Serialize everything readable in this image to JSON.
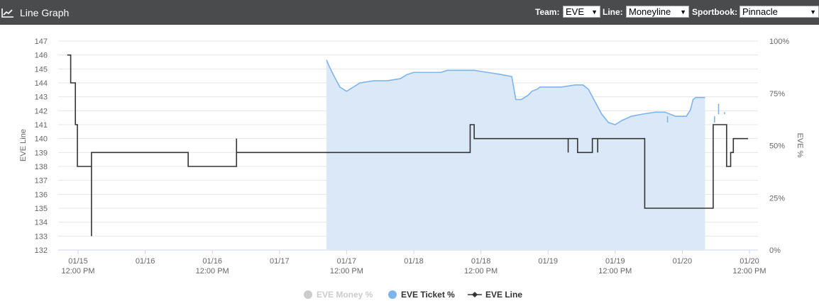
{
  "header": {
    "title": "Line Graph",
    "icon": "line-chart-icon",
    "team_label": "Team:",
    "team_value": "EVE",
    "line_label": "Line:",
    "line_value": "Moneyline",
    "sportbook_label": "Sportbook:",
    "sportbook_value": "Pinnacle"
  },
  "chart_data": {
    "type": "line",
    "ylabel": "EVE Line",
    "y2label": "EVE %",
    "ylim": [
      132,
      147
    ],
    "y_ticks": [
      132,
      133,
      134,
      135,
      136,
      137,
      138,
      139,
      140,
      141,
      142,
      143,
      144,
      145,
      146,
      147
    ],
    "y2lim": [
      0,
      100
    ],
    "y2_ticks": [
      "0%",
      "25%",
      "50%",
      "75%",
      "100%"
    ],
    "x_ticks": [
      {
        "t": 0,
        "date": "01/15",
        "time": "12:00 PM"
      },
      {
        "t": 0.5,
        "date": "01/16",
        "time": ""
      },
      {
        "t": 1,
        "date": "01/16",
        "time": "12:00 PM"
      },
      {
        "t": 1.5,
        "date": "01/17",
        "time": ""
      },
      {
        "t": 2,
        "date": "01/17",
        "time": "12:00 PM"
      },
      {
        "t": 2.5,
        "date": "01/18",
        "time": ""
      },
      {
        "t": 3,
        "date": "01/18",
        "time": "12:00 PM"
      },
      {
        "t": 3.5,
        "date": "01/19",
        "time": ""
      },
      {
        "t": 4,
        "date": "01/19",
        "time": "12:00 PM"
      },
      {
        "t": 4.5,
        "date": "01/20",
        "time": ""
      },
      {
        "t": 5,
        "date": "01/20",
        "time": "12:00 PM"
      }
    ],
    "grid": true,
    "legend_position": "bottom-center",
    "series": [
      {
        "name": "EVE Money %",
        "color": "#cccccc",
        "visible": false,
        "points": []
      },
      {
        "name": "EVE Ticket %",
        "color": "#7cb5ec",
        "axis": "right",
        "area": true,
        "points": [
          [
            1.85,
            91
          ],
          [
            1.87,
            88
          ],
          [
            1.9,
            84
          ],
          [
            1.95,
            78
          ],
          [
            2.0,
            76
          ],
          [
            2.05,
            78
          ],
          [
            2.1,
            80
          ],
          [
            2.2,
            81
          ],
          [
            2.3,
            81
          ],
          [
            2.4,
            82
          ],
          [
            2.45,
            84
          ],
          [
            2.5,
            85
          ],
          [
            2.6,
            85
          ],
          [
            2.7,
            85
          ],
          [
            2.75,
            86
          ],
          [
            2.85,
            86
          ],
          [
            2.95,
            86
          ],
          [
            3.05,
            85
          ],
          [
            3.15,
            84
          ],
          [
            3.23,
            83
          ],
          [
            3.26,
            72
          ],
          [
            3.3,
            72
          ],
          [
            3.35,
            74
          ],
          [
            3.38,
            76
          ],
          [
            3.42,
            77
          ],
          [
            3.44,
            78
          ],
          [
            3.5,
            78
          ],
          [
            3.6,
            78
          ],
          [
            3.7,
            79
          ],
          [
            3.76,
            79
          ],
          [
            3.8,
            77
          ],
          [
            3.85,
            71
          ],
          [
            3.9,
            65
          ],
          [
            3.95,
            61
          ],
          [
            4.0,
            60
          ],
          [
            4.05,
            62
          ],
          [
            4.12,
            64
          ],
          [
            4.2,
            65
          ],
          [
            4.3,
            66
          ],
          [
            4.37,
            66
          ],
          [
            4.45,
            64
          ],
          [
            4.5,
            64
          ],
          [
            4.53,
            64
          ],
          [
            4.56,
            67
          ],
          [
            4.58,
            72
          ],
          [
            4.6,
            73
          ],
          [
            4.65,
            73
          ],
          [
            4.67,
            73
          ]
        ]
      },
      {
        "name": "EVE Line",
        "color": "#333333",
        "axis": "left",
        "marker": "diamond",
        "points": [
          [
            -0.08,
            146
          ],
          [
            -0.055,
            146
          ],
          [
            -0.055,
            144
          ],
          [
            -0.02,
            144
          ],
          [
            -0.02,
            141
          ],
          [
            -0.005,
            141
          ],
          [
            -0.005,
            138
          ],
          [
            0.1,
            138
          ],
          [
            0.1,
            133
          ],
          [
            0.1,
            139
          ],
          [
            0.82,
            139
          ],
          [
            0.82,
            138
          ],
          [
            1.18,
            138
          ],
          [
            1.18,
            140
          ],
          [
            1.18,
            139
          ],
          [
            2.92,
            139
          ],
          [
            2.92,
            141
          ],
          [
            2.95,
            141
          ],
          [
            2.95,
            140
          ],
          [
            3.65,
            140
          ],
          [
            3.65,
            139
          ],
          [
            3.65,
            140
          ],
          [
            3.72,
            140
          ],
          [
            3.72,
            139
          ],
          [
            3.83,
            139
          ],
          [
            3.83,
            140
          ],
          [
            3.87,
            140
          ],
          [
            3.87,
            139
          ],
          [
            3.87,
            140
          ],
          [
            4.22,
            140
          ],
          [
            4.22,
            135
          ],
          [
            4.73,
            135
          ],
          [
            4.73,
            141
          ],
          [
            4.83,
            141
          ],
          [
            4.83,
            138
          ],
          [
            4.86,
            138
          ],
          [
            4.86,
            139
          ],
          [
            4.88,
            139
          ],
          [
            4.88,
            140
          ],
          [
            4.99,
            140
          ]
        ]
      }
    ]
  },
  "legend": {
    "money": "EVE Money %",
    "ticket": "EVE Ticket %",
    "line": "EVE Line"
  }
}
